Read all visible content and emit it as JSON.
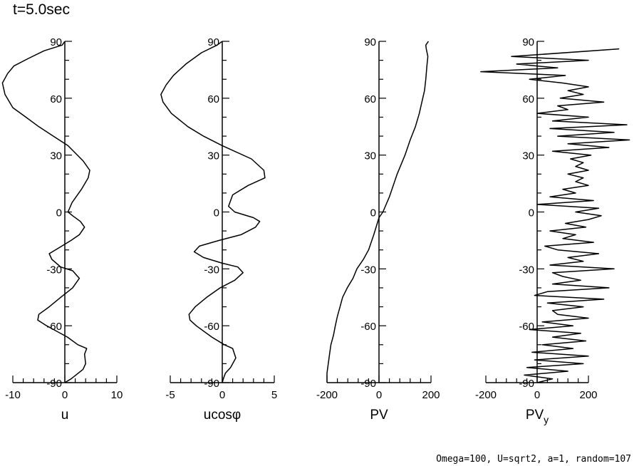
{
  "title": "t=5.0sec",
  "footer": "Omega=100, U=sqrt2, a=1, random=107",
  "chart_data": [
    {
      "type": "line",
      "xlabel": "u",
      "ylabel": "",
      "xlim": [
        -10,
        10
      ],
      "ylim": [
        -90,
        90
      ],
      "x_ticks": [
        -10,
        0,
        10
      ],
      "y_ticks": [
        -90,
        -60,
        -30,
        0,
        30,
        60,
        90
      ],
      "series": [
        {
          "x": [
            0,
            1.2,
            3.5,
            4.0,
            3.8,
            4.2,
            2.5,
            0.5,
            -1.5,
            -3.5,
            -5.2,
            -5.0,
            -3.0,
            -0.8,
            1.5,
            2.8,
            1.5,
            -0.8,
            -2.5,
            -3.0,
            -1.2,
            1.2,
            2.8,
            3.8,
            3.0,
            1.5,
            0.6,
            1.4,
            3.2,
            4.5,
            4.8,
            3.5,
            0.6,
            -2.2,
            -5.0,
            -7.5,
            -10.0,
            -11.5,
            -12.0,
            -11.0,
            -9.8,
            -7.0,
            -4.0,
            -0.5,
            0
          ],
          "y": [
            -90,
            -88,
            -83,
            -80,
            -75,
            -72,
            -70,
            -66,
            -63,
            -60,
            -57,
            -54,
            -50,
            -45,
            -40,
            -35,
            -31,
            -29,
            -25,
            -22,
            -19,
            -15,
            -12,
            -8,
            -5,
            -2,
            0,
            5,
            12,
            18,
            22,
            27,
            35,
            40,
            45,
            50,
            55,
            62,
            68,
            73,
            77,
            81,
            85,
            88,
            90
          ]
        }
      ]
    },
    {
      "type": "line",
      "xlabel": "ucosφ",
      "ylabel": "",
      "xlim": [
        -5,
        5
      ],
      "ylim": [
        -90,
        90
      ],
      "x_ticks": [
        -5,
        0,
        5
      ],
      "y_ticks": [
        -90,
        -60,
        -30,
        0,
        30,
        60,
        90
      ],
      "series": [
        {
          "x": [
            0,
            0.1,
            0.3,
            0.8,
            1.3,
            1.0,
            0.2,
            -1.0,
            -2.5,
            -3.1,
            -3.2,
            -2.6,
            -1.5,
            -0.2,
            1.2,
            2.0,
            1.5,
            0,
            -1.8,
            -2.7,
            -2.2,
            -0.3,
            1.8,
            3.2,
            3.6,
            3.0,
            1.2,
            0.6,
            1.0,
            2.5,
            4.1,
            4.0,
            2.8,
            0,
            -1.8,
            -3.3,
            -4.9,
            -5.7,
            -5.9,
            -5.4,
            -4.7,
            -3.5,
            -2.0,
            -0.5,
            0
          ],
          "y": [
            -90,
            -88,
            -85,
            -82,
            -77,
            -72,
            -70,
            -66,
            -60,
            -57,
            -54,
            -50,
            -45,
            -40,
            -36,
            -32,
            -29,
            -27,
            -24,
            -21,
            -18,
            -15,
            -12,
            -8,
            -5,
            -3,
            0,
            3,
            9,
            14,
            18,
            22,
            28,
            35,
            40,
            45,
            52,
            58,
            62,
            67,
            72,
            78,
            84,
            88,
            90
          ]
        }
      ]
    },
    {
      "type": "line",
      "xlabel": "PV",
      "ylabel": "",
      "xlim": [
        -200,
        200
      ],
      "ylim": [
        -90,
        90
      ],
      "x_ticks": [
        -200,
        0,
        200
      ],
      "y_ticks": [
        -90,
        -60,
        -30,
        0,
        30,
        60,
        90
      ],
      "series": [
        {
          "x": [
            -200,
            -200,
            -195,
            -190,
            -185,
            -175,
            -168,
            -160,
            -150,
            -140,
            -122,
            -100,
            -85,
            -60,
            -40,
            -20,
            0,
            15,
            40,
            70,
            100,
            120,
            140,
            155,
            165,
            175,
            180,
            183,
            185,
            188,
            182,
            180,
            185,
            190
          ],
          "y": [
            -90,
            -85,
            -80,
            -75,
            -70,
            -65,
            -60,
            -55,
            -50,
            -45,
            -40,
            -35,
            -30,
            -25,
            -20,
            -12,
            -3,
            0,
            8,
            20,
            30,
            38,
            45,
            52,
            58,
            64,
            70,
            75,
            78,
            82,
            86,
            88,
            89,
            90
          ]
        }
      ]
    },
    {
      "type": "line",
      "xlabel": "PV",
      "xlabel_subscript": "y",
      "ylabel": "",
      "xlim": [
        -200,
        200
      ],
      "ylim": [
        -90,
        90
      ],
      "x_ticks": [
        -200,
        0,
        200
      ],
      "y_ticks": [
        -90,
        -60,
        -30,
        0,
        30,
        60,
        90
      ],
      "series": [
        {
          "x": [
            0,
            60,
            -50,
            120,
            -40,
            180,
            -10,
            200,
            -20,
            140,
            20,
            190,
            60,
            170,
            -30,
            140,
            20,
            200,
            80,
            60,
            180,
            40,
            260,
            -10,
            40,
            280,
            60,
            170,
            100,
            60,
            300,
            50,
            180,
            120,
            240,
            80,
            30,
            220,
            100,
            150,
            50,
            190,
            110,
            200,
            250,
            150,
            240,
            0,
            220,
            50,
            150,
            100,
            200,
            150,
            180,
            120,
            200,
            150,
            180,
            130,
            210,
            60,
            280,
            120,
            360,
            80,
            300,
            50,
            350,
            60,
            200,
            0,
            120,
            80,
            260,
            90,
            180,
            120,
            200,
            100,
            -30,
            110,
            -220,
            80,
            -80,
            200,
            -100,
            320
          ],
          "y": [
            -90,
            -88,
            -86,
            -84,
            -82,
            -80,
            -78,
            -76,
            -74,
            -72,
            -70,
            -68,
            -66,
            -64,
            -62,
            -60,
            -58,
            -56,
            -54,
            -52,
            -50,
            -48,
            -46,
            -44,
            -42,
            -40,
            -38,
            -36,
            -34,
            -32,
            -30,
            -28,
            -26,
            -24,
            -22,
            -20,
            -18,
            -16,
            -14,
            -12,
            -10,
            -8,
            -6,
            -4,
            -2,
            0,
            2,
            4,
            6,
            8,
            10,
            12,
            14,
            16,
            18,
            20,
            22,
            24,
            26,
            28,
            30,
            32,
            34,
            36,
            38,
            40,
            42,
            44,
            46,
            48,
            50,
            52,
            54,
            56,
            58,
            60,
            62,
            64,
            66,
            68,
            70,
            72,
            74,
            76,
            78,
            80,
            82,
            86
          ]
        }
      ]
    }
  ]
}
